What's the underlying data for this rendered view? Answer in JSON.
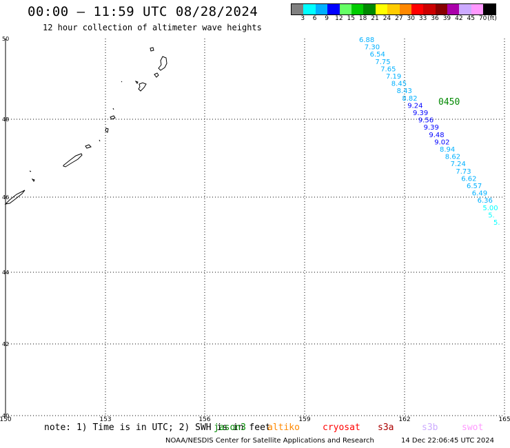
{
  "header": {
    "title": "00:00 – 11:59 UTC 08/28/2024",
    "subtitle": "12 hour collection of altimeter wave heights"
  },
  "legend": {
    "colors": [
      "#808080",
      "#00ffff",
      "#00b0ff",
      "#0000ff",
      "#66ff66",
      "#00cc00",
      "#008800",
      "#ffff00",
      "#ffcc00",
      "#ff8800",
      "#ff0000",
      "#cc0000",
      "#880000",
      "#aa00aa",
      "#ccaaff",
      "#ff99ff",
      "#000000"
    ],
    "labels": [
      "3",
      "6",
      "9",
      "12",
      "15",
      "18",
      "21",
      "24",
      "27",
      "30",
      "33",
      "36",
      "39",
      "42",
      "45",
      "70",
      "(ft)"
    ]
  },
  "axes": {
    "lon_ticks": [
      "150",
      "153",
      "156",
      "159",
      "162",
      "165"
    ],
    "lat_ticks": [
      "50",
      "48",
      "46",
      "44",
      "42",
      "40"
    ]
  },
  "pass": {
    "time_label": "0450",
    "time_label_color": "#008800",
    "values": [
      "6.88",
      "7.30",
      "6.54",
      "7.75",
      "7.65",
      "7.19",
      "8.45",
      "8.43",
      "8.82",
      "9.24",
      "9.39",
      "9.56",
      "9.39",
      "9.48",
      "9.02",
      "8.94",
      "8.62",
      "7.24",
      "7.73",
      "6.62",
      "6.57",
      "6.49",
      "6.36",
      "5.00",
      "5.",
      "5."
    ],
    "colors": [
      "#00b0ff",
      "#00b0ff",
      "#00b0ff",
      "#00b0ff",
      "#00b0ff",
      "#00b0ff",
      "#00b0ff",
      "#00b0ff",
      "#00b0ff",
      "#0000ff",
      "#0000ff",
      "#0000ff",
      "#0000ff",
      "#0000ff",
      "#0000ff",
      "#00b0ff",
      "#00b0ff",
      "#00b0ff",
      "#00b0ff",
      "#00b0ff",
      "#00b0ff",
      "#00b0ff",
      "#00b0ff",
      "#00ffff",
      "#00ffff",
      "#00ffff"
    ]
  },
  "footer": {
    "note": "note: 1) Time is in UTC; 2) SWH is in feet",
    "satellites": [
      {
        "name": "jason3",
        "color": "#008800"
      },
      {
        "name": "altiko",
        "color": "#ff8800"
      },
      {
        "name": "cryosat",
        "color": "#ff0000"
      },
      {
        "name": "s3a",
        "color": "#aa0000"
      },
      {
        "name": "s3b",
        "color": "#ccaaff"
      },
      {
        "name": "swot",
        "color": "#ff99ff"
      }
    ],
    "credits": "NOAA/NESDIS Center for Satellite Applications and Research",
    "timestamp": "14 Dec 22:06:45 UTC 2024"
  }
}
